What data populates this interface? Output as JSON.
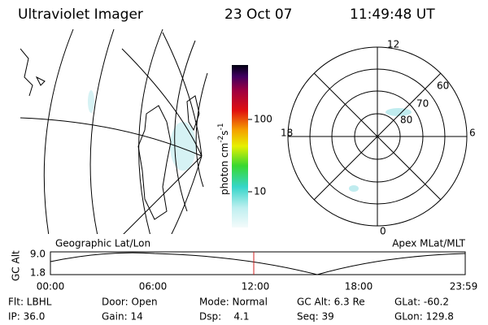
{
  "header": {
    "title": "Ultraviolet Imager",
    "date": "23 Oct 07",
    "time": "11:49:48 UT"
  },
  "colorbar": {
    "unit": "photon cm",
    "exp1": "-2",
    "unit2": "s",
    "exp2": "-1",
    "ticks": [
      "100",
      "10"
    ]
  },
  "polar": {
    "mlt_labels": [
      "12",
      "18",
      "6",
      "0"
    ],
    "lat_labels": [
      "60",
      "70",
      "80"
    ]
  },
  "panel_labels": {
    "left": "Geographic Lat/Lon",
    "right": "Apex MLat/MLT"
  },
  "altitude_plot": {
    "ylabel": "GC Alt",
    "yticks": [
      "9.0",
      "1.8"
    ],
    "xticks": [
      "00:00",
      "06:00",
      "12:00",
      "18:00",
      "23:59"
    ]
  },
  "status": [
    [
      "Flt: LBHL",
      "Door: Open",
      "Mode: Normal",
      "GC Alt: 6.3 Re",
      "GLat: -60.2"
    ],
    [
      "IP: 36.0",
      "Gain: 14",
      "Dsp:    4.1",
      "Seq: 39",
      "GLon: 129.8"
    ]
  ]
}
